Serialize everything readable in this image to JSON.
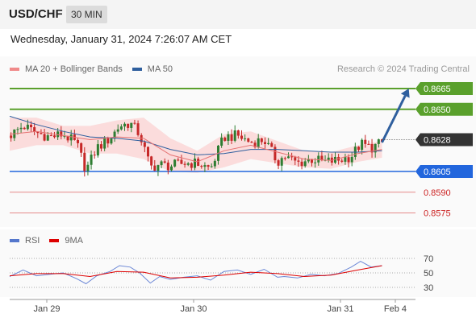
{
  "header": {
    "symbol": "USD/CHF",
    "timeframe": "30 MIN",
    "timestamp": "Wednesday, January 31, 2024 7:26:07 AM CET",
    "copyright": "Research © 2024 Trading Central"
  },
  "legend": {
    "main": [
      {
        "name": "MA 20 + Bollinger Bands",
        "color": "#f08a8a"
      },
      {
        "name": "MA 50",
        "color": "#2f5f9e"
      }
    ],
    "rsi": [
      {
        "name": "RSI",
        "color": "#5577cc"
      },
      {
        "name": "9MA",
        "color": "#dd0000"
      }
    ]
  },
  "colors": {
    "resistance": "#5aa02c",
    "support": "#2266dd",
    "target": "#cc2222",
    "current": "#333333",
    "candle_up": "#2e7d32",
    "candle_down": "#c62828",
    "bands": "#fbd8d8",
    "arrow": "#2f5f9e"
  },
  "chart_data": [
    {
      "type": "candlestick",
      "ylim": [
        0.8566,
        0.8672
      ],
      "x_ticks": [
        "Jan 29",
        "Jan 30",
        "Jan 31",
        "Feb 4"
      ],
      "current_price": "0.8628",
      "levels": [
        {
          "value": 0.8665,
          "label": "0.8665",
          "kind": "resistance"
        },
        {
          "value": 0.865,
          "label": "0.8650",
          "kind": "resistance"
        },
        {
          "value": 0.8605,
          "label": "0.8605",
          "kind": "support"
        },
        {
          "value": 0.859,
          "label": "0.8590",
          "kind": "target"
        },
        {
          "value": 0.8575,
          "label": "0.8575",
          "kind": "target"
        }
      ],
      "price_path": [
        [
          0,
          0.8631
        ],
        [
          10,
          0.8638
        ],
        [
          20,
          0.8633
        ],
        [
          30,
          0.863
        ],
        [
          40,
          0.8632
        ],
        [
          50,
          0.8625
        ],
        [
          57,
          0.8606
        ],
        [
          65,
          0.8622
        ],
        [
          75,
          0.8629
        ],
        [
          82,
          0.8638
        ],
        [
          90,
          0.864
        ],
        [
          97,
          0.8632
        ],
        [
          105,
          0.8608
        ],
        [
          112,
          0.861
        ],
        [
          120,
          0.8609
        ],
        [
          130,
          0.8611
        ],
        [
          140,
          0.8611
        ],
        [
          150,
          0.8607
        ],
        [
          160,
          0.863
        ],
        [
          170,
          0.8631
        ],
        [
          180,
          0.8626
        ],
        [
          190,
          0.8628
        ],
        [
          200,
          0.8612
        ],
        [
          205,
          0.8616
        ],
        [
          215,
          0.8611
        ],
        [
          225,
          0.8614
        ],
        [
          235,
          0.8612
        ],
        [
          245,
          0.8613
        ],
        [
          255,
          0.8616
        ],
        [
          262,
          0.8625
        ],
        [
          270,
          0.8622
        ],
        [
          278,
          0.8626
        ]
      ],
      "ma20": [
        [
          0,
          0.8632
        ],
        [
          20,
          0.8634
        ],
        [
          40,
          0.8631
        ],
        [
          60,
          0.8628
        ],
        [
          80,
          0.863
        ],
        [
          100,
          0.8629
        ],
        [
          120,
          0.8617
        ],
        [
          140,
          0.8612
        ],
        [
          160,
          0.862
        ],
        [
          180,
          0.8624
        ],
        [
          200,
          0.8619
        ],
        [
          220,
          0.8614
        ],
        [
          240,
          0.8613
        ],
        [
          260,
          0.8618
        ],
        [
          278,
          0.8621
        ]
      ],
      "ma50": [
        [
          0,
          0.8645
        ],
        [
          20,
          0.8639
        ],
        [
          40,
          0.8634
        ],
        [
          60,
          0.863
        ],
        [
          80,
          0.8629
        ],
        [
          100,
          0.8627
        ],
        [
          120,
          0.8621
        ],
        [
          140,
          0.8617
        ],
        [
          160,
          0.8618
        ],
        [
          180,
          0.8621
        ],
        [
          200,
          0.8621
        ],
        [
          220,
          0.862
        ],
        [
          240,
          0.8619
        ],
        [
          260,
          0.8619
        ],
        [
          278,
          0.862
        ]
      ],
      "bollinger_width": [
        [
          0,
          0.0012
        ],
        [
          20,
          0.001
        ],
        [
          40,
          0.0007
        ],
        [
          60,
          0.001
        ],
        [
          80,
          0.0012
        ],
        [
          100,
          0.0015
        ],
        [
          120,
          0.0012
        ],
        [
          140,
          0.0008
        ],
        [
          160,
          0.0012
        ],
        [
          180,
          0.001
        ],
        [
          200,
          0.0008
        ],
        [
          220,
          0.0006
        ],
        [
          240,
          0.0006
        ],
        [
          260,
          0.0006
        ],
        [
          278,
          0.0006
        ]
      ],
      "projection": {
        "from": [
          278,
          0.8626
        ],
        "to": [
          298,
          0.8665
        ]
      }
    },
    {
      "type": "line",
      "ylim": [
        20,
        80
      ],
      "y_ticks": [
        "70",
        "50",
        "30"
      ],
      "reference_levels": [
        70,
        50,
        30
      ],
      "rsi_path": [
        [
          0,
          45
        ],
        [
          10,
          54
        ],
        [
          20,
          46
        ],
        [
          30,
          48
        ],
        [
          40,
          50
        ],
        [
          50,
          42
        ],
        [
          57,
          35
        ],
        [
          65,
          46
        ],
        [
          75,
          52
        ],
        [
          82,
          60
        ],
        [
          90,
          58
        ],
        [
          97,
          50
        ],
        [
          105,
          36
        ],
        [
          112,
          45
        ],
        [
          120,
          41
        ],
        [
          130,
          44
        ],
        [
          140,
          46
        ],
        [
          150,
          40
        ],
        [
          160,
          52
        ],
        [
          170,
          54
        ],
        [
          180,
          48
        ],
        [
          190,
          55
        ],
        [
          200,
          44
        ],
        [
          205,
          45
        ],
        [
          215,
          43
        ],
        [
          225,
          48
        ],
        [
          235,
          46
        ],
        [
          245,
          49
        ],
        [
          255,
          58
        ],
        [
          262,
          66
        ],
        [
          270,
          58
        ],
        [
          278,
          60
        ]
      ],
      "rsi_ma": [
        [
          0,
          46
        ],
        [
          20,
          49
        ],
        [
          40,
          49
        ],
        [
          60,
          45
        ],
        [
          80,
          52
        ],
        [
          100,
          51
        ],
        [
          120,
          43
        ],
        [
          140,
          44
        ],
        [
          160,
          47
        ],
        [
          180,
          51
        ],
        [
          200,
          49
        ],
        [
          220,
          45
        ],
        [
          240,
          47
        ],
        [
          260,
          54
        ],
        [
          278,
          60
        ]
      ]
    }
  ]
}
